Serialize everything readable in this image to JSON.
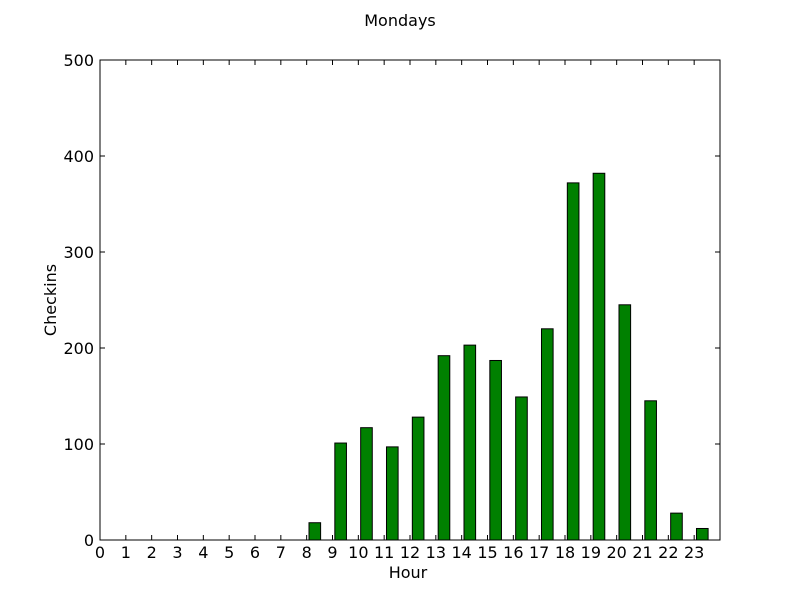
{
  "chart_data": {
    "type": "bar",
    "title": "Mondays",
    "xlabel": "Hour",
    "ylabel": "Checkins",
    "ylim": [
      0,
      500
    ],
    "xlim": [
      0,
      24
    ],
    "yticks": [
      0,
      100,
      200,
      300,
      400,
      500
    ],
    "xticks": [
      "0",
      "1",
      "2",
      "3",
      "4",
      "5",
      "6",
      "7",
      "8",
      "9",
      "10",
      "11",
      "12",
      "13",
      "14",
      "15",
      "16",
      "17",
      "18",
      "19",
      "20",
      "21",
      "22",
      "23"
    ],
    "categories": [
      0,
      1,
      2,
      3,
      4,
      5,
      6,
      7,
      8,
      9,
      10,
      11,
      12,
      13,
      14,
      15,
      16,
      17,
      18,
      19,
      20,
      21,
      22,
      23
    ],
    "values": [
      0,
      0,
      0,
      0,
      0,
      0,
      0,
      0,
      18,
      101,
      117,
      97,
      128,
      192,
      203,
      187,
      149,
      220,
      372,
      382,
      245,
      145,
      28,
      12
    ],
    "bar_color": "#008000",
    "grid": false,
    "legend": "none"
  }
}
